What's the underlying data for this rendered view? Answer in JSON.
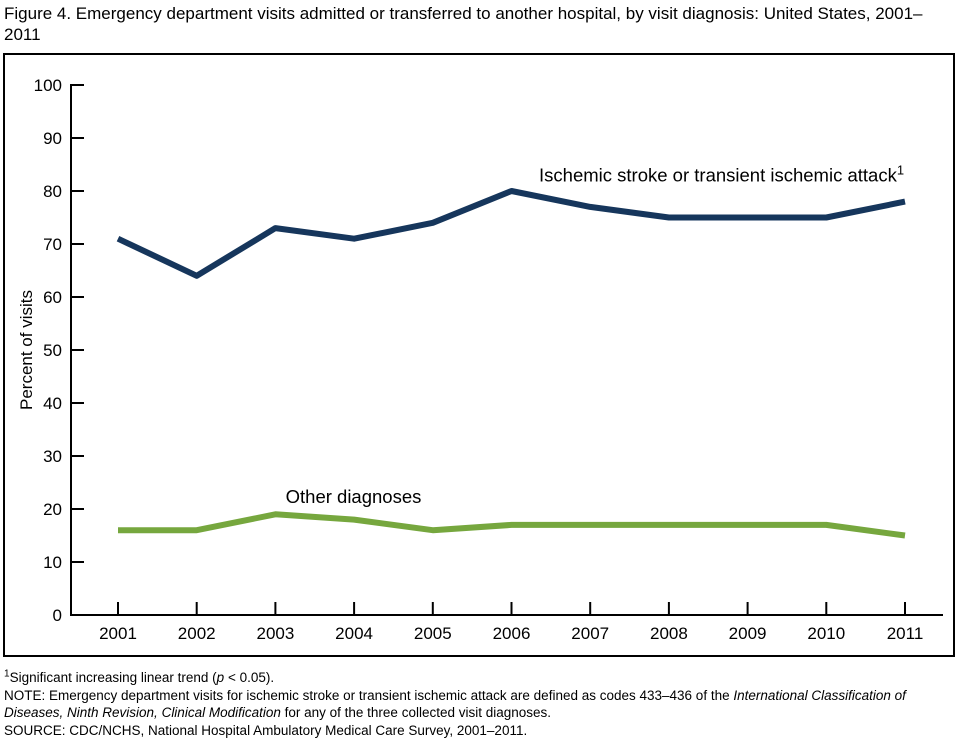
{
  "title": "Figure 4. Emergency department visits admitted or transferred to another hospital, by visit diagnosis: United States, 2001–2011",
  "chart_data": {
    "type": "line",
    "title": "Emergency department visits admitted or transferred to another hospital, by visit diagnosis: United States, 2001–2011",
    "categories": [
      "2001",
      "2002",
      "2003",
      "2004",
      "2005",
      "2006",
      "2007",
      "2008",
      "2009",
      "2010",
      "2011"
    ],
    "xlabel": "",
    "ylabel": "Percent of visits",
    "ylim": [
      0,
      100
    ],
    "ytick_step": 10,
    "grid": false,
    "legend_position": "inline-annotations",
    "axis_color": "#000000",
    "series": [
      {
        "name": "Ischemic stroke or transient ischemic attack",
        "superscript": "1",
        "color": "#16365C",
        "values": [
          71,
          64,
          73,
          71,
          74,
          80,
          77,
          75,
          75,
          75,
          78
        ],
        "label_anchor": {
          "x_year": 2006.35,
          "y_value": 81.8
        }
      },
      {
        "name": "Other diagnoses",
        "superscript": "",
        "color": "#76A73E",
        "values": [
          16,
          16,
          19,
          18,
          16,
          17,
          17,
          17,
          17,
          17,
          15
        ],
        "label_anchor": {
          "x_year": 2003.13,
          "y_value": 21.1
        }
      }
    ]
  },
  "footnotes": [
    {
      "segments": [
        {
          "t": "1",
          "sup": true
        },
        {
          "t": "Significant increasing linear trend ("
        },
        {
          "t": "p",
          "i": true
        },
        {
          "t": " < 0.05)."
        }
      ]
    },
    {
      "segments": [
        {
          "t": "NOTE: Emergency department visits for ischemic stroke or transient ischemic attack are defined as codes 433–436 of the "
        },
        {
          "t": "International Classification of Diseases, Ninth Revision, Clinical Modification",
          "i": true
        },
        {
          "t": " for any of the three collected visit diagnoses."
        }
      ]
    },
    {
      "segments": [
        {
          "t": "SOURCE: CDC/NCHS, National Hospital Ambulatory Medical Care Survey, 2001–2011."
        }
      ]
    }
  ]
}
